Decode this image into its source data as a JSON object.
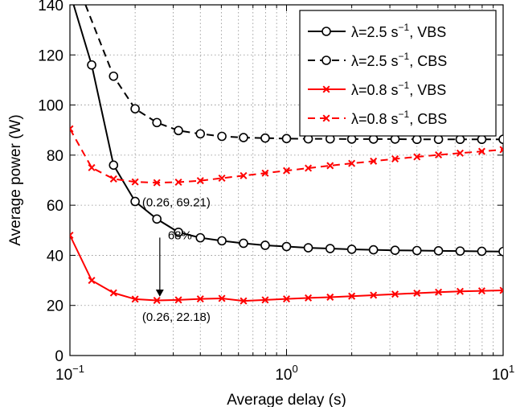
{
  "chart_data": {
    "type": "line",
    "xlabel": "Average delay (s)",
    "ylabel": "Average power (W)",
    "xscale": "log",
    "xlim": [
      0.1,
      10
    ],
    "ylim": [
      0,
      140
    ],
    "grid": true,
    "legend_position": "top-right",
    "x_ticks": [
      {
        "value": 0.1,
        "base": "10",
        "exp": "−1"
      },
      {
        "value": 1,
        "base": "10",
        "exp": "0"
      },
      {
        "value": 10,
        "base": "10",
        "exp": "1"
      }
    ],
    "y_ticks": [
      0,
      20,
      40,
      60,
      80,
      100,
      120,
      140
    ],
    "series": [
      {
        "name": "λ=2.5 s",
        "name_sup": "−1",
        "name_suffix": ", VBS",
        "color": "#000000",
        "dashed": false,
        "marker": "circle",
        "x": [
          0.104,
          0.126,
          0.159,
          0.2,
          0.252,
          0.317,
          0.4,
          0.503,
          0.633,
          0.797,
          1.0,
          1.26,
          1.59,
          2.0,
          2.52,
          3.17,
          4.0,
          5.03,
          6.33,
          7.97,
          10.0
        ],
        "y": [
          140,
          116,
          76,
          61.5,
          54.5,
          49.2,
          47,
          45.8,
          44.8,
          44,
          43.5,
          43,
          42.7,
          42.4,
          42.2,
          42,
          41.9,
          41.8,
          41.7,
          41.6,
          41.5
        ]
      },
      {
        "name": "λ=2.5 s",
        "name_sup": "−1",
        "name_suffix": ", CBS",
        "color": "#000000",
        "dashed": true,
        "marker": "circle",
        "x": [
          0.118,
          0.159,
          0.2,
          0.252,
          0.317,
          0.4,
          0.503,
          0.633,
          0.797,
          1.0,
          1.26,
          1.59,
          2.0,
          2.52,
          3.17,
          4.0,
          5.03,
          6.33,
          7.97,
          10.0
        ],
        "y": [
          140,
          111.5,
          98.5,
          93,
          89.8,
          88.5,
          87.5,
          87,
          86.8,
          86.6,
          86.5,
          86.5,
          86.4,
          86.4,
          86.4,
          86.3,
          86.3,
          86.3,
          86.3,
          86.3
        ]
      },
      {
        "name": "λ=0.8 s",
        "name_sup": "−1",
        "name_suffix": ", VBS",
        "color": "#ff0000",
        "dashed": false,
        "marker": "cross",
        "x": [
          0.1,
          0.126,
          0.159,
          0.2,
          0.252,
          0.317,
          0.4,
          0.503,
          0.633,
          0.797,
          1.0,
          1.26,
          1.59,
          2.0,
          2.52,
          3.17,
          4.0,
          5.03,
          6.33,
          7.97,
          10.0
        ],
        "y": [
          48,
          30,
          25,
          22.5,
          22,
          22.2,
          22.6,
          22.8,
          21.8,
          22.2,
          22.6,
          23,
          23.3,
          23.7,
          24.1,
          24.5,
          24.9,
          25.3,
          25.6,
          25.8,
          26
        ]
      },
      {
        "name": "λ=0.8 s",
        "name_sup": "−1",
        "name_suffix": ", CBS",
        "color": "#ff0000",
        "dashed": true,
        "marker": "cross",
        "x": [
          0.1,
          0.126,
          0.159,
          0.2,
          0.252,
          0.317,
          0.4,
          0.503,
          0.633,
          0.797,
          1.0,
          1.26,
          1.59,
          2.0,
          2.52,
          3.17,
          4.0,
          5.03,
          6.33,
          7.97,
          10.0
        ],
        "y": [
          90.5,
          75,
          70.5,
          69.3,
          69,
          69.2,
          69.8,
          70.8,
          71.8,
          72.8,
          73.8,
          74.8,
          75.8,
          76.7,
          77.6,
          78.5,
          79.3,
          80.1,
          80.8,
          81.5,
          82.2
        ]
      }
    ],
    "annotations": [
      {
        "text": "(0.26, 69.21)",
        "x": 0.26,
        "y": 69.21
      },
      {
        "text": "(0.26, 22.18)",
        "x": 0.26,
        "y": 22.18
      },
      {
        "text": "68%",
        "x": 0.26,
        "y": 49
      }
    ],
    "arrow": {
      "x": 0.26,
      "y_from": 49,
      "y_to": 22.18
    }
  }
}
